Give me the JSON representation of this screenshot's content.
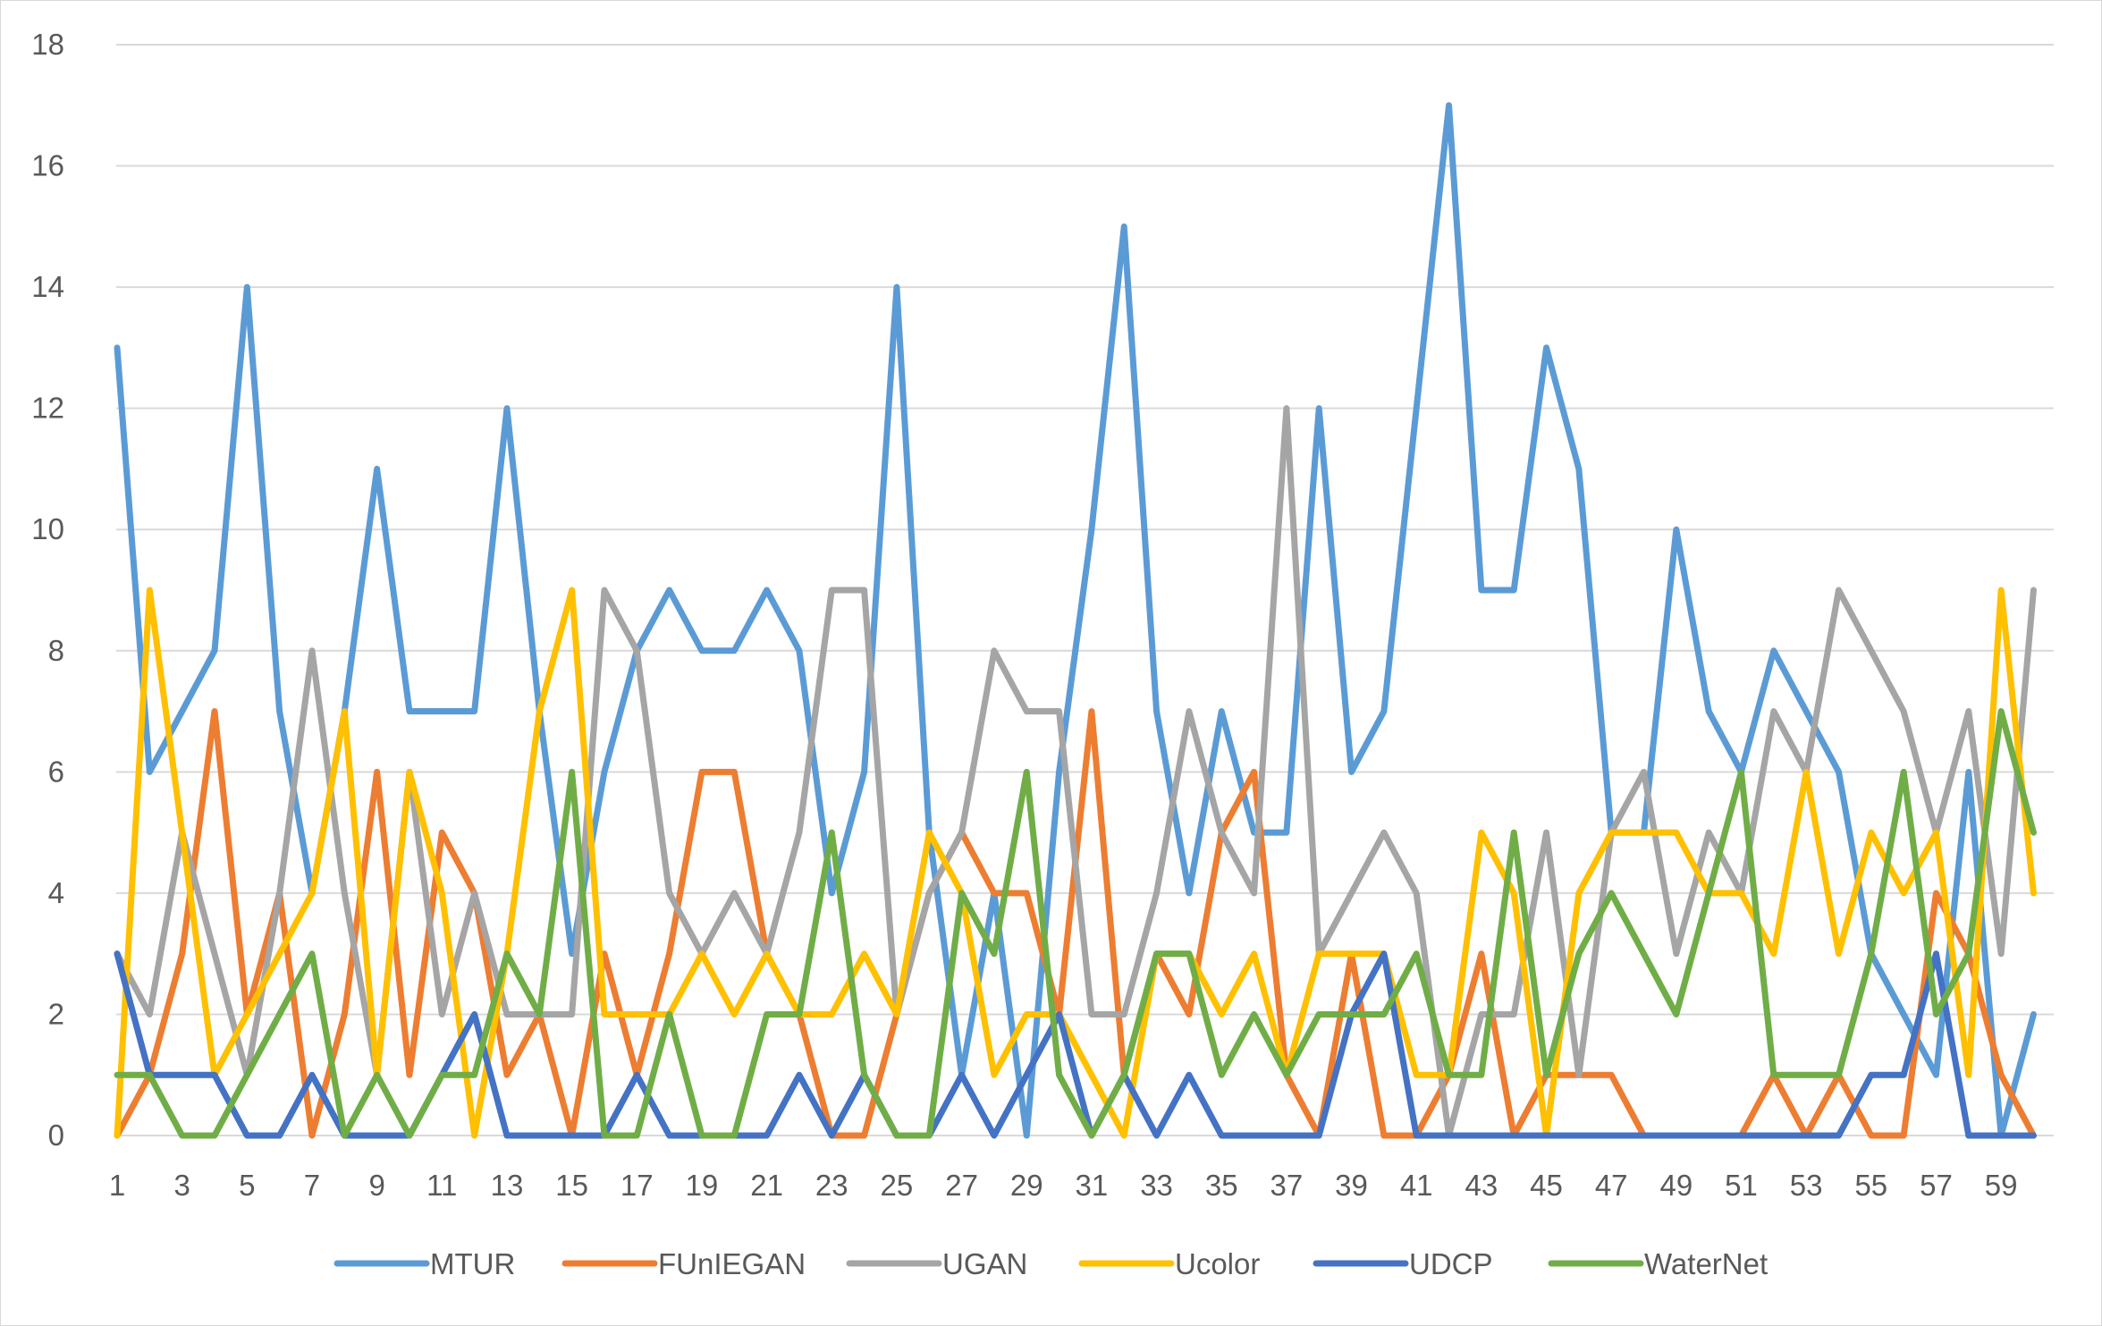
{
  "chart_data": {
    "type": "line",
    "title": "",
    "xlabel": "",
    "ylabel": "",
    "ylim": [
      0,
      18
    ],
    "yticks": [
      0,
      2,
      4,
      6,
      8,
      10,
      12,
      14,
      16,
      18
    ],
    "x": [
      1,
      2,
      3,
      4,
      5,
      6,
      7,
      8,
      9,
      10,
      11,
      12,
      13,
      14,
      15,
      16,
      17,
      18,
      19,
      20,
      21,
      22,
      23,
      24,
      25,
      26,
      27,
      28,
      29,
      30,
      31,
      32,
      33,
      34,
      35,
      36,
      37,
      38,
      39,
      40,
      41,
      42,
      43,
      44,
      45,
      46,
      47,
      48,
      49,
      50,
      51,
      52,
      53,
      54,
      55,
      56,
      57,
      58,
      59,
      60
    ],
    "xtick_labels": [
      1,
      3,
      5,
      7,
      9,
      11,
      13,
      15,
      17,
      19,
      21,
      23,
      25,
      27,
      29,
      31,
      33,
      35,
      37,
      39,
      41,
      43,
      45,
      47,
      49,
      51,
      53,
      55,
      57,
      59
    ],
    "grid": true,
    "legend_position": "bottom",
    "series": [
      {
        "name": "MTUR",
        "color": "#5b9bd5",
        "values": [
          13,
          6,
          7,
          8,
          14,
          7,
          4,
          7,
          11,
          7,
          7,
          7,
          12,
          7,
          3,
          6,
          8,
          9,
          8,
          8,
          9,
          8,
          4,
          6,
          14,
          5,
          1,
          4,
          0,
          6,
          10,
          15,
          7,
          4,
          7,
          5,
          5,
          12,
          6,
          7,
          12,
          17,
          9,
          9,
          13,
          11,
          5,
          5,
          10,
          7,
          6,
          8,
          7,
          6,
          3,
          2,
          1,
          6,
          0,
          2
        ]
      },
      {
        "name": "FUnIEGAN",
        "color": "#ed7d31",
        "values": [
          0,
          1,
          3,
          7,
          2,
          4,
          0,
          2,
          6,
          1,
          5,
          4,
          1,
          2,
          0,
          3,
          1,
          3,
          6,
          6,
          3,
          2,
          0,
          0,
          2,
          4,
          5,
          4,
          4,
          2,
          7,
          1,
          3,
          2,
          5,
          6,
          1,
          0,
          3,
          0,
          0,
          1,
          3,
          0,
          1,
          1,
          1,
          0,
          0,
          0,
          0,
          1,
          0,
          1,
          0,
          0,
          4,
          3,
          1,
          0
        ]
      },
      {
        "name": "UGAN",
        "color": "#a5a5a5",
        "values": [
          3,
          2,
          5,
          3,
          1,
          4,
          8,
          4,
          1,
          6,
          2,
          4,
          2,
          2,
          2,
          9,
          8,
          4,
          3,
          4,
          3,
          5,
          9,
          9,
          2,
          4,
          5,
          8,
          7,
          7,
          2,
          2,
          4,
          7,
          5,
          4,
          12,
          3,
          4,
          5,
          4,
          0,
          2,
          2,
          5,
          1,
          5,
          6,
          3,
          5,
          4,
          7,
          6,
          9,
          8,
          7,
          5,
          7,
          3,
          9
        ]
      },
      {
        "name": "Ucolor",
        "color": "#ffc000",
        "values": [
          0,
          9,
          5,
          1,
          2,
          3,
          4,
          7,
          1,
          6,
          4,
          0,
          3,
          7,
          9,
          2,
          2,
          2,
          3,
          2,
          3,
          2,
          2,
          3,
          2,
          5,
          4,
          1,
          2,
          2,
          1,
          0,
          3,
          3,
          2,
          3,
          1,
          3,
          3,
          3,
          1,
          1,
          5,
          4,
          0,
          4,
          5,
          5,
          5,
          4,
          4,
          3,
          6,
          3,
          5,
          4,
          5,
          1,
          9,
          4
        ]
      },
      {
        "name": "UDCP",
        "color": "#4472c4",
        "values": [
          3,
          1,
          1,
          1,
          0,
          0,
          1,
          0,
          0,
          0,
          1,
          2,
          0,
          0,
          0,
          0,
          1,
          0,
          0,
          0,
          0,
          1,
          0,
          1,
          0,
          0,
          1,
          0,
          1,
          2,
          0,
          1,
          0,
          1,
          0,
          0,
          0,
          0,
          2,
          3,
          0,
          0,
          0,
          0,
          0,
          0,
          0,
          0,
          0,
          0,
          0,
          0,
          0,
          0,
          1,
          1,
          3,
          0,
          0,
          0
        ]
      },
      {
        "name": "WaterNet",
        "color": "#70ad47",
        "values": [
          1,
          1,
          0,
          0,
          1,
          2,
          3,
          0,
          1,
          0,
          1,
          1,
          3,
          2,
          6,
          0,
          0,
          2,
          0,
          0,
          2,
          2,
          5,
          1,
          0,
          0,
          4,
          3,
          6,
          1,
          0,
          1,
          3,
          3,
          1,
          2,
          1,
          2,
          2,
          2,
          3,
          1,
          1,
          5,
          1,
          3,
          4,
          3,
          2,
          4,
          6,
          1,
          1,
          1,
          3,
          6,
          2,
          3,
          7,
          5
        ]
      }
    ]
  }
}
